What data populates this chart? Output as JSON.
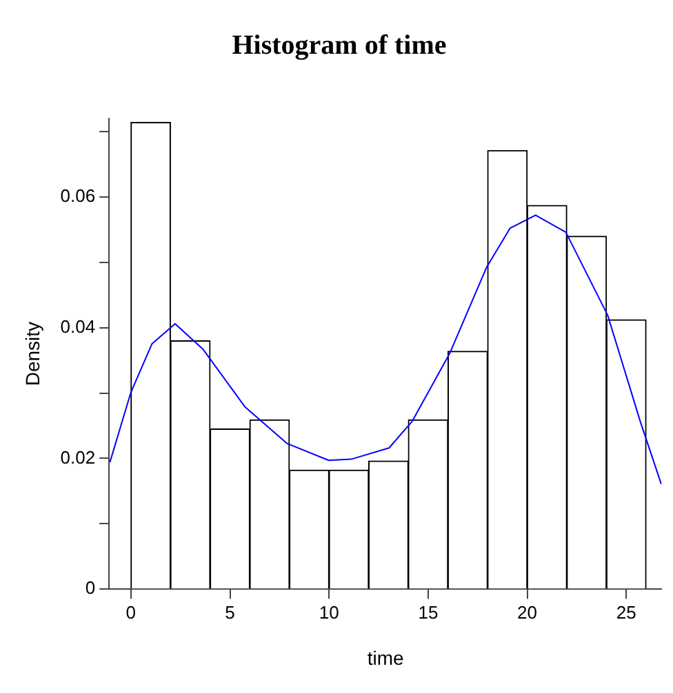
{
  "chart_data": {
    "type": "histogram",
    "title": "Histogram of time",
    "xlabel": "time",
    "ylabel": "Density",
    "bins": [
      0,
      2,
      4,
      6,
      8,
      10,
      12,
      14,
      16,
      18,
      20,
      22,
      24,
      26
    ],
    "values": [
      0.0714,
      0.038,
      0.0245,
      0.0259,
      0.0182,
      0.0182,
      0.0196,
      0.0259,
      0.0364,
      0.0671,
      0.0587,
      0.054,
      0.0412
    ],
    "color": "#ffffff",
    "series": [
      {
        "type": "line",
        "color": "#0000ff",
        "x": [
          -1.06,
          0,
          1.06,
          2.23,
          3.64,
          5.75,
          7.87,
          9.98,
          11.15,
          13.03,
          14.2,
          16.08,
          17.96,
          19.13,
          20.42,
          21.95,
          24.06,
          25.7,
          26.76
        ],
        "values": [
          0.0194,
          0.0301,
          0.0375,
          0.0406,
          0.0367,
          0.0279,
          0.0223,
          0.0197,
          0.0199,
          0.0216,
          0.0257,
          0.036,
          0.0493,
          0.0552,
          0.0572,
          0.0546,
          0.0419,
          0.0257,
          0.0161
        ]
      }
    ],
    "xlim": [
      -1.1,
      26.8
    ],
    "xticks": [
      0,
      5,
      10,
      15,
      20,
      25
    ],
    "ylim": [
      0,
      0.072
    ],
    "yticks": [
      0,
      {
        "value": 0.01,
        "label": null
      },
      0.02,
      {
        "value": 0.03,
        "label": null
      },
      0.04,
      {
        "value": 0.05,
        "label": null
      },
      0.06,
      {
        "value": 0.07,
        "label": null
      }
    ],
    "grid": false,
    "legend": false
  }
}
